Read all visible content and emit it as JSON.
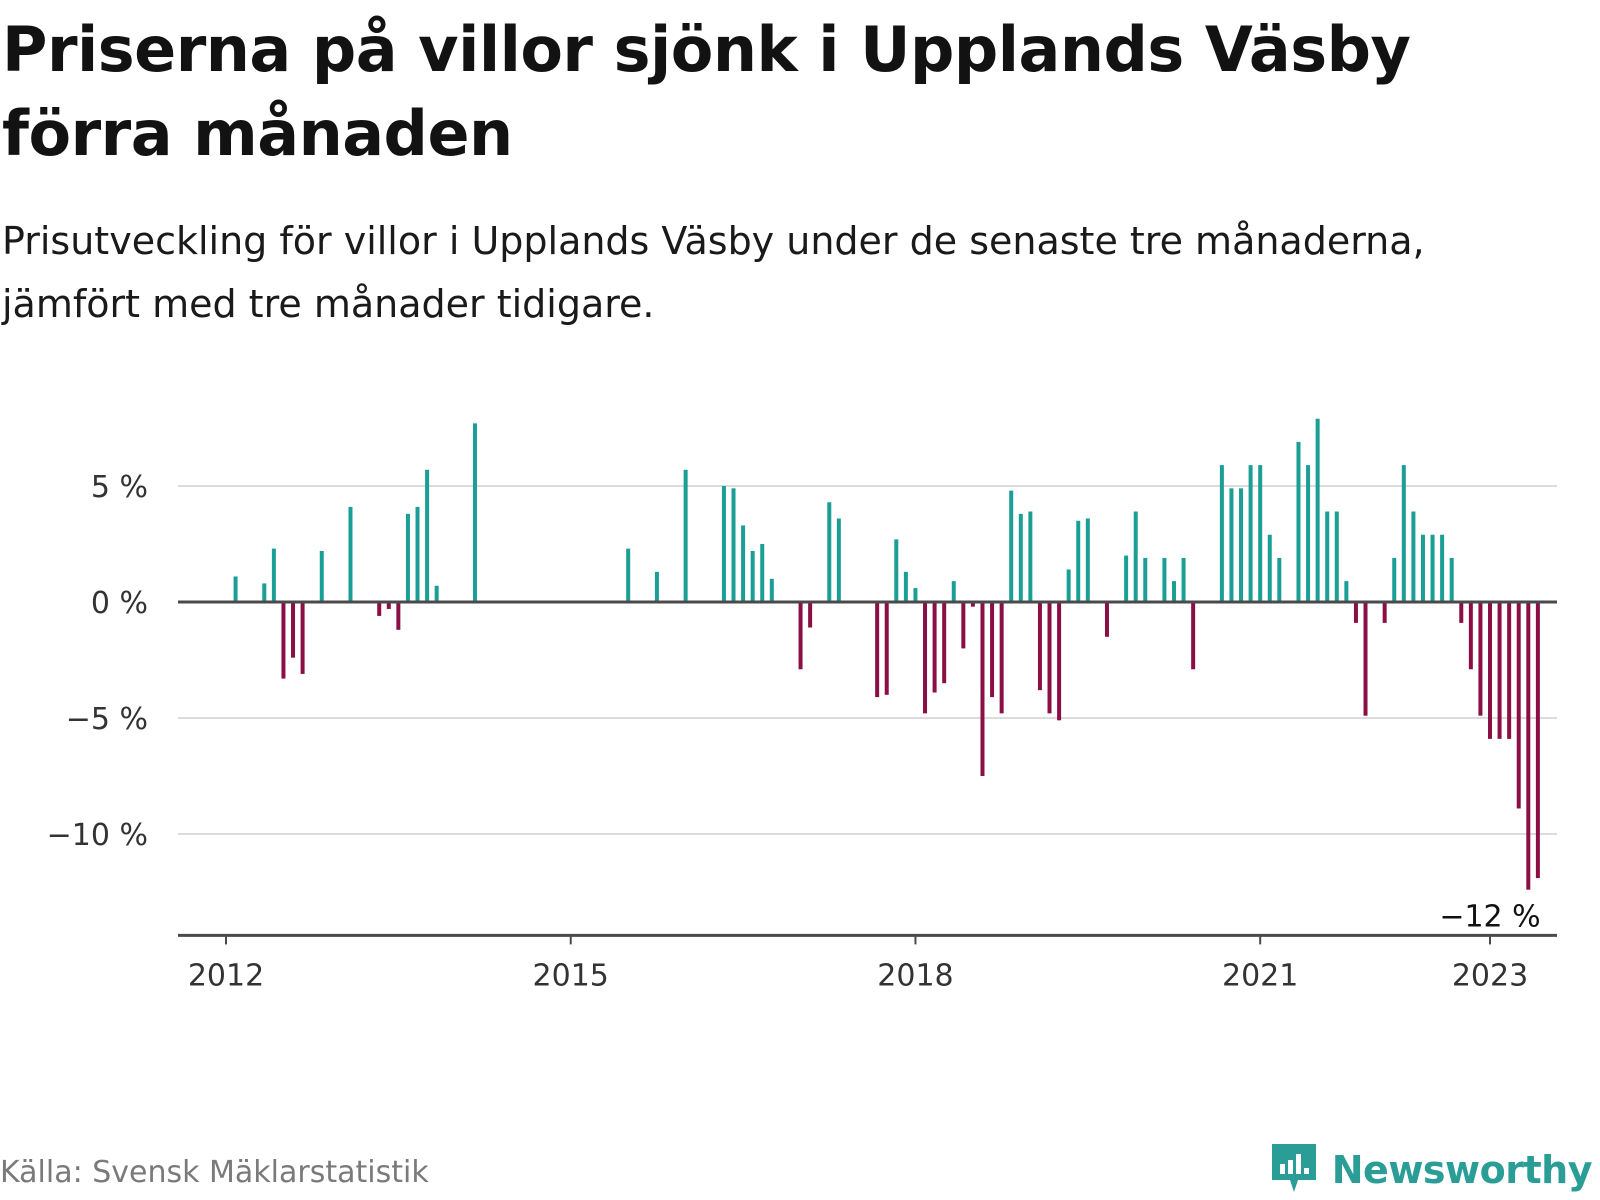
{
  "header": {
    "title": "Priserna på villor sjönk i Upplands Väsby förra månaden",
    "subtitle": "Prisutveckling för villor i Upplands Väsby under de senaste tre månaderna, jämfört med tre månader tidigare."
  },
  "footer": {
    "source": "Källa: Svensk Mäklarstatistik",
    "brand": "Newsworthy"
  },
  "colors": {
    "positive": "#1a9e96",
    "negative": "#8b0f45",
    "gridline": "#dcdcdc",
    "baseline": "#4a4a4a",
    "brand": "#2a9d97"
  },
  "chart_data": {
    "type": "bar",
    "title": "Priserna på villor sjönk i Upplands Väsby förra månaden",
    "subtitle": "Prisutveckling för villor i Upplands Väsby under de senaste tre månaderna, jämfört med tre månader tidigare.",
    "ylim": [
      -14.5,
      8.5
    ],
    "y_ticks": [
      5,
      0,
      -5,
      -10
    ],
    "y_tick_labels": [
      "5 %",
      "0 %",
      "−5 %",
      "−10 %"
    ],
    "x_ticks": [
      2012,
      2015,
      2018,
      2021,
      2023
    ],
    "x_tick_labels": [
      "2012",
      "2015",
      "2018",
      "2021",
      "2023"
    ],
    "xlim": [
      "2011-07",
      "2023-08"
    ],
    "grid": true,
    "legend": "none",
    "annotations": [
      {
        "x": "2023-01",
        "y": -12,
        "text": "−12 %"
      }
    ],
    "dates": [
      "2012-02",
      "2012-05",
      "2012-06",
      "2012-07",
      "2012-08",
      "2012-09",
      "2012-11",
      "2013-02",
      "2013-05",
      "2013-06",
      "2013-07",
      "2013-08",
      "2013-09",
      "2013-10",
      "2013-11",
      "2014-03",
      "2015-07",
      "2015-10",
      "2016-01",
      "2016-05",
      "2016-06",
      "2016-07",
      "2016-08",
      "2016-09",
      "2016-10",
      "2017-01",
      "2017-02",
      "2017-04",
      "2017-05",
      "2017-09",
      "2017-10",
      "2017-11",
      "2017-12",
      "2018-01",
      "2018-02",
      "2018-03",
      "2018-04",
      "2018-05",
      "2018-06",
      "2018-07",
      "2018-08",
      "2018-09",
      "2018-10",
      "2018-11",
      "2018-12",
      "2019-01",
      "2019-02",
      "2019-03",
      "2019-04",
      "2019-05",
      "2019-06",
      "2019-07",
      "2019-09",
      "2019-11",
      "2019-12",
      "2020-01",
      "2020-03",
      "2020-04",
      "2020-05",
      "2020-06",
      "2020-09",
      "2020-10",
      "2020-11",
      "2020-12",
      "2021-01",
      "2021-02",
      "2021-03",
      "2021-05",
      "2021-06",
      "2021-07",
      "2021-08",
      "2021-09",
      "2021-10",
      "2021-11",
      "2021-12",
      "2022-02",
      "2022-03",
      "2022-04",
      "2022-05",
      "2022-06",
      "2022-07",
      "2022-08",
      "2022-09",
      "2022-10",
      "2022-11",
      "2022-12",
      "2023-01",
      "2023-02",
      "2023-03",
      "2023-04",
      "2023-05",
      "2023-06",
      "2023-07"
    ],
    "values": [
      1.1,
      0.8,
      2.3,
      -3.3,
      -2.4,
      -3.1,
      2.2,
      4.1,
      -0.6,
      -0.3,
      -1.2,
      3.8,
      4.1,
      5.7,
      0.7,
      7.7,
      2.3,
      1.3,
      5.7,
      5.0,
      4.9,
      3.3,
      2.2,
      2.5,
      1.0,
      -2.9,
      -1.1,
      4.3,
      3.6,
      -4.1,
      -4.0,
      2.7,
      1.3,
      0.6,
      -4.8,
      -3.9,
      -3.5,
      0.9,
      -2.0,
      -0.2,
      -7.5,
      -4.1,
      -4.8,
      4.8,
      3.8,
      3.9,
      -3.8,
      -4.8,
      -5.1,
      1.4,
      3.5,
      3.6,
      -1.5,
      2.0,
      3.9,
      1.9,
      1.9,
      0.9,
      1.9,
      -2.9,
      5.9,
      4.9,
      4.9,
      5.9,
      5.9,
      2.9,
      1.9,
      6.9,
      5.9,
      7.9,
      3.9,
      3.9,
      0.9,
      -0.9,
      -4.9,
      -0.9,
      1.9,
      5.9,
      3.9,
      2.9,
      2.9,
      2.9,
      1.9,
      -0.9,
      -2.9,
      -4.9,
      -5.9,
      -5.9,
      -5.9,
      -8.9,
      -12.4,
      -11.9,
      0.0
    ]
  }
}
